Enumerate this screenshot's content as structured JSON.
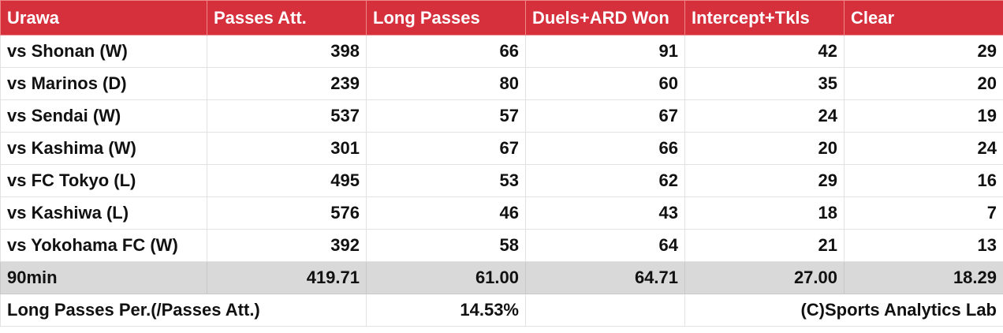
{
  "table": {
    "header": [
      "Urawa",
      "Passes Att.",
      "Long Passes",
      "Duels+ARD Won",
      "Intercept+Tkls",
      "Clear"
    ],
    "rows": [
      [
        "vs Shonan (W)",
        "398",
        "66",
        "91",
        "42",
        "29"
      ],
      [
        "vs Marinos (D)",
        "239",
        "80",
        "60",
        "35",
        "20"
      ],
      [
        "vs Sendai (W)",
        "537",
        "57",
        "67",
        "24",
        "19"
      ],
      [
        "vs Kashima (W)",
        "301",
        "67",
        "66",
        "20",
        "24"
      ],
      [
        "vs FC Tokyo (L)",
        "495",
        "53",
        "62",
        "29",
        "16"
      ],
      [
        "vs Kashiwa (L)",
        "576",
        "46",
        "43",
        "18",
        "7"
      ],
      [
        "vs Yokohama FC (W)",
        "392",
        "58",
        "64",
        "21",
        "13"
      ]
    ],
    "total": [
      "90min",
      "419.71",
      "61.00",
      "64.71",
      "27.00",
      "18.29"
    ],
    "footer": {
      "label": "Long Passes Per.(/Passes Att.)",
      "value": "14.53%",
      "credit": "(C)Sports Analytics Lab"
    }
  }
}
